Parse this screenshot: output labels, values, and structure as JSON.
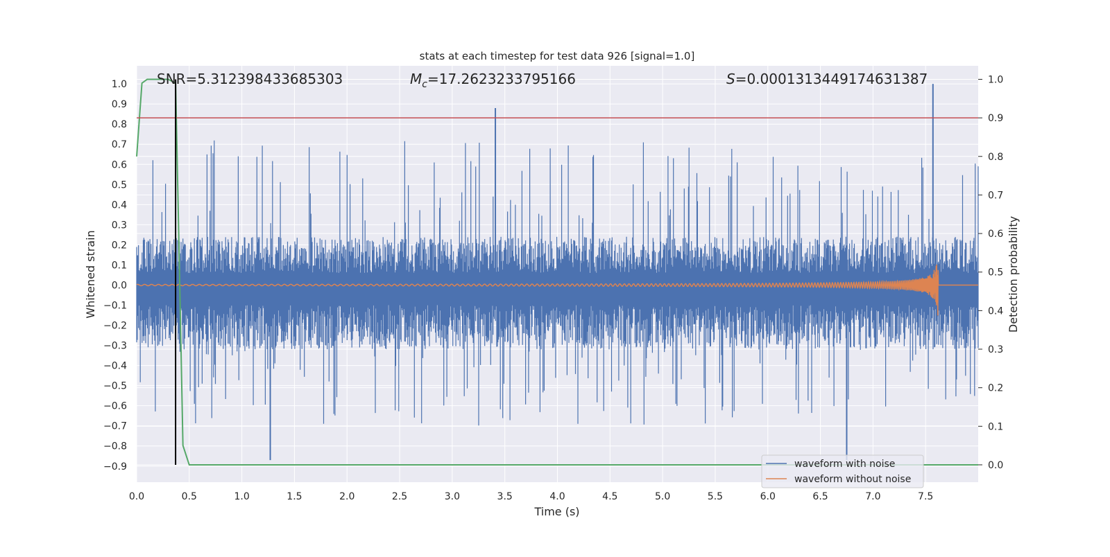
{
  "chart_data": {
    "type": "line",
    "title": "stats at each timestep for test data 926 [signal=1.0]",
    "xlabel": "Time (s)",
    "ylabel": "Whitened strain",
    "y2label": "Detection probability",
    "xlim": [
      0.0,
      8.0
    ],
    "ylim": [
      -0.98,
      1.09
    ],
    "y2lim": [
      -0.045,
      1.035
    ],
    "x_ticks": [
      "0.0",
      "0.5",
      "1.0",
      "1.5",
      "2.0",
      "2.5",
      "3.0",
      "3.5",
      "4.0",
      "4.5",
      "5.0",
      "5.5",
      "6.0",
      "6.5",
      "7.0",
      "7.5"
    ],
    "y_ticks": [
      "−0.9",
      "−0.8",
      "−0.7",
      "−0.6",
      "−0.5",
      "−0.4",
      "−0.3",
      "−0.2",
      "−0.1",
      "0.0",
      "0.1",
      "0.2",
      "0.3",
      "0.4",
      "0.5",
      "0.6",
      "0.7",
      "0.8",
      "0.9",
      "1.0"
    ],
    "y2_ticks": [
      "0.0",
      "0.1",
      "0.2",
      "0.3",
      "0.4",
      "0.5",
      "0.6",
      "0.7",
      "0.8",
      "0.9",
      "1.0"
    ],
    "grid": true,
    "legend_position": "lower right",
    "annotations": {
      "snr": "SNR=5.312398433685303",
      "mc": "=17.2623233795166",
      "mc_symbol": "M",
      "mc_subscript": "c",
      "s": "=0.0001313449174631387",
      "s_symbol": "S"
    },
    "series": [
      {
        "name": "waveform with noise",
        "color": "#4c72b0",
        "axis": "left",
        "note": "dense noise band, typically between -0.3 and 0.25, spikes up to 1.0 near t=7.57 and down to -0.87 near t=6.75",
        "peaks": [
          {
            "x": 3.41,
            "y": 0.88
          },
          {
            "x": 7.57,
            "y": 1.0
          },
          {
            "x": 1.27,
            "y": -0.87
          },
          {
            "x": 6.75,
            "y": -0.87
          }
        ]
      },
      {
        "name": "waveform without noise",
        "color": "#dd8452",
        "axis": "left",
        "note": "chirp signal, amplitude growing from ~0.01 to ~0.21 at merger time ~7.62 s, then zero"
      },
      {
        "name": "detection probability",
        "color": "#55a868",
        "axis": "right",
        "points": [
          [
            0.0,
            0.8
          ],
          [
            0.05,
            0.99
          ],
          [
            0.1,
            1.0
          ],
          [
            0.2,
            1.0
          ],
          [
            0.3,
            1.0
          ],
          [
            0.37,
            0.99
          ],
          [
            0.4,
            0.6
          ],
          [
            0.44,
            0.05
          ],
          [
            0.5,
            0.0
          ],
          [
            8.0,
            0.0
          ]
        ]
      },
      {
        "name": "threshold",
        "color": "#c44e52",
        "axis": "right",
        "value": 0.9
      },
      {
        "name": "detection time marker",
        "color": "#000000",
        "axis": "left",
        "x": 0.37
      }
    ]
  }
}
